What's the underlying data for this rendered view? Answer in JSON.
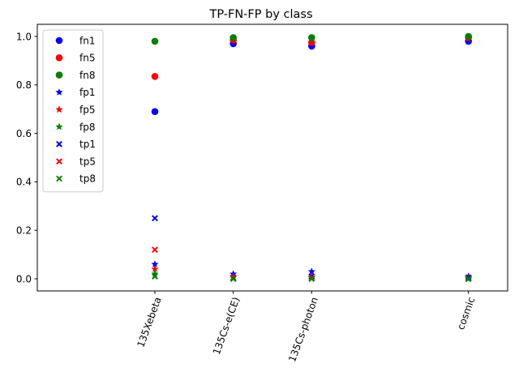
{
  "chart_data": {
    "type": "scatter",
    "title": "TP-FN-FP by class",
    "xlabel": "",
    "ylabel": "",
    "categories": [
      "135Xebeta",
      "135Cs-e(CE)",
      "135Cs-photon",
      "cosmic"
    ],
    "category_positions": [
      1,
      2,
      3,
      5
    ],
    "xlim": [
      -0.5,
      5.5
    ],
    "ylim": [
      -0.05,
      1.05
    ],
    "yticks": [
      "0.0",
      "0.2",
      "0.4",
      "0.6",
      "0.8",
      "1.0"
    ],
    "ytick_values": [
      0.0,
      0.2,
      0.4,
      0.6,
      0.8,
      1.0
    ],
    "legend_position": "upper-left",
    "grid": false,
    "series": [
      {
        "name": "fn1",
        "marker": "circle",
        "color": "#0000ff",
        "values": [
          0.69,
          0.97,
          0.96,
          0.98
        ]
      },
      {
        "name": "fn5",
        "marker": "circle",
        "color": "#ff0000",
        "values": [
          0.835,
          0.985,
          0.975,
          0.995
        ]
      },
      {
        "name": "fn8",
        "marker": "circle",
        "color": "#008000",
        "values": [
          0.98,
          0.995,
          0.995,
          1.0
        ]
      },
      {
        "name": "fp1",
        "marker": "star",
        "color": "#0000ff",
        "values": [
          0.06,
          0.02,
          0.03,
          0.01
        ]
      },
      {
        "name": "fp5",
        "marker": "star",
        "color": "#ff0000",
        "values": [
          0.04,
          0.01,
          0.01,
          0.005
        ]
      },
      {
        "name": "fp8",
        "marker": "star",
        "color": "#008000",
        "values": [
          0.02,
          0.005,
          0.005,
          0.0
        ]
      },
      {
        "name": "tp1",
        "marker": "x",
        "color": "#0000ff",
        "values": [
          0.25,
          0.005,
          0.01,
          0.005
        ]
      },
      {
        "name": "tp5",
        "marker": "x",
        "color": "#ff0000",
        "values": [
          0.12,
          0.005,
          0.005,
          0.0
        ]
      },
      {
        "name": "tp8",
        "marker": "x",
        "color": "#008000",
        "values": [
          0.01,
          0.0,
          0.0,
          0.0
        ]
      }
    ]
  }
}
